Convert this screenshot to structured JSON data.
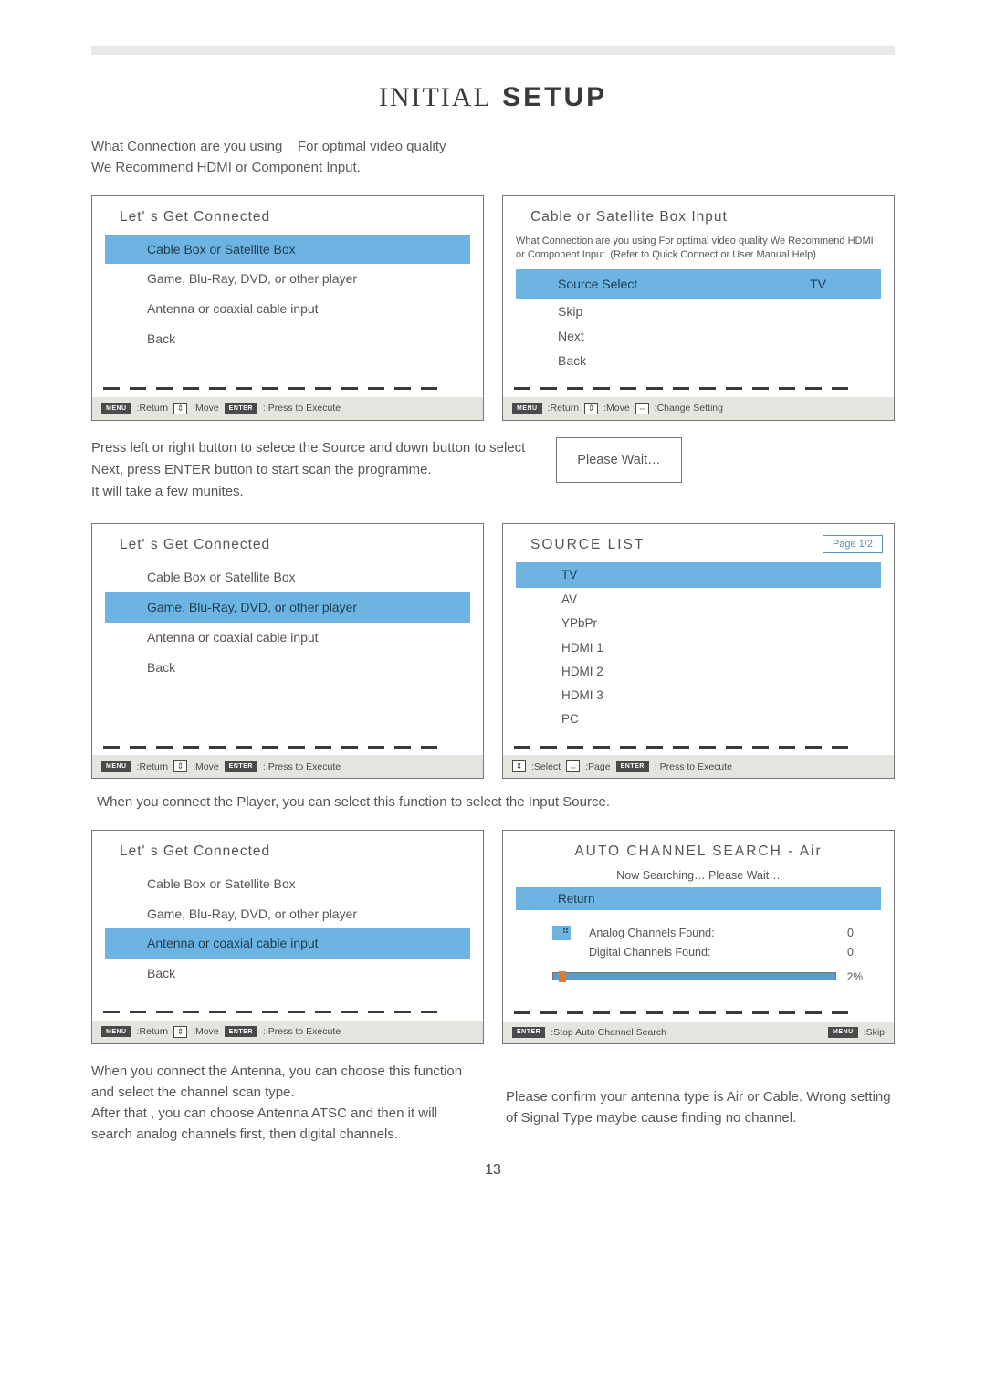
{
  "title": {
    "part1": "INITIAL",
    "part2": "SETUP"
  },
  "intro": {
    "line1a": "What Connection are you using",
    "line1b": "For optimal video quality",
    "line2": "We Recommend HDMI or Component Input."
  },
  "colors": {
    "highlight": "#6db4e3",
    "panel_border": "#777777",
    "footer_bg": "#e5e5df",
    "dash": "#3a3a3a",
    "text": "#555555",
    "badge_border": "#5a8fb0",
    "progress_fill": "#5a9dca",
    "progress_handle": "#e07b2e"
  },
  "panel1": {
    "title": "Let' s Get Connected",
    "items": [
      "Cable Box or Satellite Box",
      "Game, Blu-Ray, DVD, or other player",
      "Antenna or coaxial cable input",
      "Back"
    ],
    "highlight_index": 0,
    "footer": {
      "k1": "MENU",
      "t1": ":Return",
      "t2": ":Move",
      "k2": "ENTER",
      "t3": ": Press to Execute"
    }
  },
  "panel2": {
    "title": "Cable or Satellite Box Input",
    "desc": "What Connection are you using   For optimal video quality We Recommend HDMI or Component Input. (Refer to Quick Connect or User Manual Help)",
    "row_label": "Source Select",
    "row_value": "TV",
    "items": [
      "Skip",
      "Next",
      "Back"
    ],
    "footer": {
      "k1": "MENU",
      "t1": ":Return",
      "t2": ":Move",
      "t3": ":Change Setting"
    }
  },
  "mid_text": {
    "l1": "Press left or right button to selece the Source and down button to select",
    "l2": "Next, press ENTER button to start scan the programme.",
    "l3": "It will take a few munites."
  },
  "wait": "Please Wait…",
  "panel3": {
    "title": "Let' s Get Connected",
    "items": [
      "Cable Box or Satellite Box",
      "Game, Blu-Ray, DVD, or other player",
      "Antenna or coaxial cable input",
      "Back"
    ],
    "highlight_index": 1,
    "footer": {
      "k1": "MENU",
      "t1": ":Return",
      "t2": ":Move",
      "k2": "ENTER",
      "t3": ": Press to Execute"
    }
  },
  "panel4": {
    "title": "SOURCE LIST",
    "badge": "Page 1/2",
    "items": [
      "TV",
      "AV",
      "YPbPr",
      "HDMI 1",
      "HDMI 2",
      "HDMI 3",
      "PC"
    ],
    "highlight_index": 0,
    "footer": {
      "t1": ":Select",
      "t2": ":Page",
      "k2": "ENTER",
      "t3": ": Press to Execute"
    }
  },
  "after4": "When you connect the Player, you can select this function to select the Input Source.",
  "panel5": {
    "title": "Let' s Get Connected",
    "items": [
      "Cable Box or Satellite Box",
      "Game, Blu-Ray, DVD, or other player",
      "Antenna or coaxial cable input",
      "Back"
    ],
    "highlight_index": 2,
    "footer": {
      "k1": "MENU",
      "t1": ":Return",
      "t2": ":Move",
      "k2": "ENTER",
      "t3": ": Press to Execute"
    }
  },
  "panel6": {
    "title": "AUTO CHANNEL SEARCH - Air",
    "sub": "Now Searching… Please Wait…",
    "return": "Return",
    "rows": [
      {
        "label": "Analog Channels Found:",
        "val": "0"
      },
      {
        "label": "Digital Channels Found:",
        "val": "0"
      }
    ],
    "progress_pct": 2,
    "pct_label": "2%",
    "footer": {
      "k1": "ENTER",
      "t1": ":Stop Auto Channel Search",
      "k2": "MENU",
      "t2": ":Skip"
    }
  },
  "bottom": {
    "left": "When you connect the Antenna, you can choose this function and select the channel scan type.\nAfter that , you can choose Antenna  ATSC and then it will search analog channels first, then digital channels.",
    "right": "Please confirm your antenna type is Air or Cable. Wrong setting of Signal Type maybe cause finding no channel."
  },
  "page_number": "13"
}
